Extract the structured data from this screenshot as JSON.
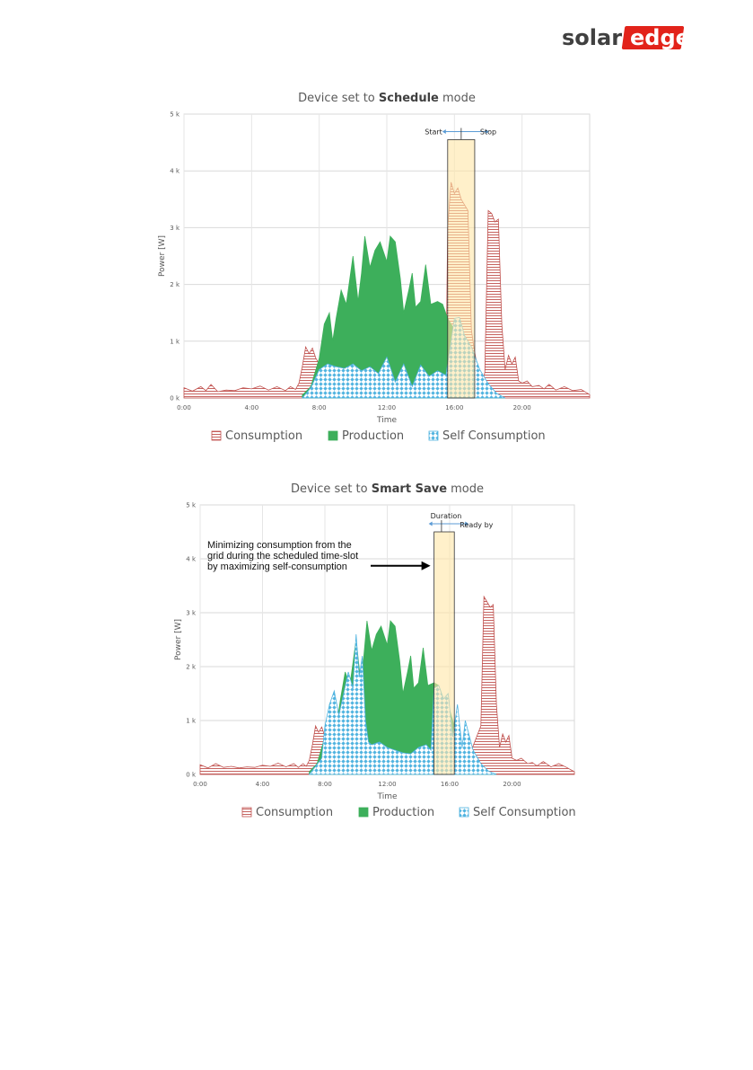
{
  "brand": {
    "logo_part1": "solar",
    "logo_part2": "edge",
    "logo_color": "#404040",
    "logo_accent": "#e2231a"
  },
  "colors": {
    "consumption": "#c0504d",
    "production": "#3daf5b",
    "self_consumption": "#4fb3e0",
    "slot_fill": "#ffe6a6",
    "arrow": "#5b9bd5"
  },
  "chart_data": [
    {
      "type": "area",
      "title_prefix": "Device  set to ",
      "title_bold": "Schedule",
      "title_suffix": " mode",
      "xlabel": "Time",
      "ylabel": "Power [W]",
      "xlim": [
        0,
        24
      ],
      "ylim": [
        0,
        5000
      ],
      "x_ticks": [
        0,
        4,
        8,
        12,
        16,
        20
      ],
      "x_tick_labels": [
        "0:00",
        "4:00",
        "8:00",
        "12:00",
        "16:00",
        "20:00"
      ],
      "y_ticks": [
        0,
        1000,
        2000,
        3000,
        4000,
        5000
      ],
      "y_tick_labels": [
        "0 k",
        "1 k",
        "2 k",
        "3 k",
        "4 k",
        "5 k"
      ],
      "grid": true,
      "legend": "bottom",
      "legend_labels": [
        "Consumption",
        "Production",
        "Self Consumption"
      ],
      "time_slot": {
        "start": 15.6,
        "stop": 17.2,
        "top": 4550
      },
      "slot_labels": [
        "Start",
        "Stop"
      ],
      "series": [
        {
          "name": "Consumption",
          "x": [
            0,
            0.5,
            1,
            1.3,
            1.6,
            2,
            2.5,
            3,
            3.5,
            4,
            4.5,
            5,
            5.5,
            6,
            6.3,
            6.6,
            6.8,
            7,
            7.2,
            7.4,
            7.6,
            7.8,
            8,
            8.3,
            8.6,
            9,
            9.5,
            10,
            10.5,
            11,
            11.5,
            12,
            12.5,
            13,
            13.5,
            14,
            14.5,
            15,
            15.5,
            15.6,
            15.8,
            16,
            16.2,
            16.4,
            16.6,
            16.8,
            17,
            17.2,
            17.4,
            17.6,
            17.8,
            18,
            18.2,
            18.4,
            18.6,
            18.8,
            19,
            19.2,
            19.4,
            19.6,
            19.8,
            20,
            20.3,
            20.6,
            21,
            21.3,
            21.6,
            22,
            22.5,
            23,
            23.5,
            24
          ],
          "y": [
            180,
            120,
            200,
            130,
            240,
            110,
            140,
            130,
            180,
            160,
            210,
            140,
            200,
            130,
            200,
            150,
            260,
            550,
            900,
            780,
            880,
            700,
            600,
            560,
            520,
            600,
            480,
            600,
            500,
            520,
            700,
            300,
            600,
            200,
            650,
            400,
            500,
            420,
            300,
            3000,
            3800,
            3600,
            3700,
            3500,
            3400,
            3300,
            1200,
            800,
            500,
            200,
            450,
            3300,
            3250,
            3100,
            3150,
            1300,
            500,
            750,
            600,
            720,
            300,
            260,
            300,
            200,
            220,
            160,
            240,
            140,
            200,
            130,
            150,
            60
          ]
        },
        {
          "name": "Production",
          "x": [
            7,
            7.5,
            8,
            8.3,
            8.6,
            8.8,
            9,
            9.3,
            9.6,
            10,
            10.3,
            10.5,
            10.7,
            11,
            11.3,
            11.6,
            12,
            12.2,
            12.5,
            12.8,
            13,
            13.3,
            13.5,
            13.7,
            14,
            14.3,
            14.6,
            15,
            15.3,
            15.6,
            16,
            16.5,
            17,
            17.5,
            18,
            18.5,
            19
          ],
          "y": [
            50,
            200,
            700,
            1300,
            1500,
            1000,
            1400,
            1900,
            1650,
            2500,
            1700,
            2200,
            2850,
            2300,
            2600,
            2750,
            2400,
            2850,
            2750,
            2100,
            1500,
            1900,
            2200,
            1600,
            1700,
            2350,
            1650,
            1700,
            1650,
            1400,
            1200,
            700,
            400,
            250,
            120,
            40,
            0
          ]
        },
        {
          "name": "Self Consumption",
          "x": [
            7,
            7.5,
            8,
            8.5,
            9,
            9.5,
            10,
            10.5,
            11,
            11.5,
            12,
            12.5,
            13,
            13.5,
            14,
            14.5,
            15,
            15.5,
            16,
            16.3,
            16.6,
            17,
            17.5,
            18,
            18.5,
            19
          ],
          "y": [
            0,
            180,
            500,
            600,
            550,
            520,
            600,
            480,
            550,
            430,
            720,
            280,
            600,
            200,
            580,
            380,
            480,
            400,
            1400,
            1420,
            1100,
            900,
            500,
            250,
            80,
            0
          ]
        }
      ]
    },
    {
      "type": "area",
      "title_prefix": "Device  set to ",
      "title_bold": "Smart Save",
      "title_suffix": " mode",
      "xlabel": "Time",
      "ylabel": "Power [W]",
      "xlim": [
        0,
        24
      ],
      "ylim": [
        0,
        5000
      ],
      "x_ticks": [
        0,
        4,
        8,
        12,
        16,
        20
      ],
      "x_tick_labels": [
        "0:00",
        "4:00",
        "8:00",
        "12:00",
        "16:00",
        "20:00"
      ],
      "y_ticks": [
        0,
        1000,
        2000,
        3000,
        4000,
        5000
      ],
      "y_tick_labels": [
        "0 k",
        "1 k",
        "2 k",
        "3 k",
        "4 k",
        "5 k"
      ],
      "grid": true,
      "legend": "bottom",
      "legend_labels": [
        "Consumption",
        "Production",
        "Self Consumption"
      ],
      "time_slot": {
        "start": 15.0,
        "stop": 16.3,
        "top": 4500
      },
      "slot_labels": [
        "Duration",
        "Ready by"
      ],
      "annotation": [
        "Minimizing consumption from the",
        "grid during the scheduled time-slot",
        "by maximizing self-consumption"
      ],
      "series": [
        {
          "name": "Consumption",
          "x": [
            0,
            0.5,
            1,
            1.5,
            2,
            2.5,
            3,
            3.5,
            4,
            4.5,
            5,
            5.5,
            6,
            6.3,
            6.6,
            6.8,
            7,
            7.2,
            7.4,
            7.6,
            7.8,
            8,
            8.5,
            9,
            9.5,
            10,
            10.5,
            11,
            11.5,
            12,
            12.5,
            13,
            13.5,
            14,
            14.5,
            15,
            15.3,
            15.6,
            15.9,
            16.2,
            16.5,
            16.8,
            17,
            17.2,
            17.4,
            17.6,
            17.8,
            18,
            18.2,
            18.4,
            18.6,
            18.8,
            19,
            19.2,
            19.4,
            19.6,
            19.8,
            20,
            20.3,
            20.6,
            21,
            21.3,
            21.6,
            22,
            22.5,
            23,
            23.5,
            24
          ],
          "y": [
            180,
            120,
            200,
            130,
            150,
            120,
            140,
            130,
            170,
            150,
            210,
            140,
            200,
            130,
            200,
            150,
            260,
            550,
            900,
            780,
            880,
            700,
            600,
            560,
            520,
            600,
            480,
            600,
            500,
            520,
            700,
            300,
            600,
            200,
            650,
            400,
            500,
            420,
            450,
            300,
            350,
            300,
            250,
            200,
            450,
            600,
            750,
            900,
            3300,
            3200,
            3100,
            3150,
            1300,
            500,
            750,
            600,
            720,
            300,
            260,
            300,
            200,
            220,
            160,
            240,
            140,
            200,
            130,
            50
          ]
        },
        {
          "name": "Production",
          "x": [
            7,
            7.5,
            8,
            8.3,
            8.6,
            8.8,
            9,
            9.3,
            9.6,
            10,
            10.3,
            10.5,
            10.7,
            11,
            11.3,
            11.6,
            12,
            12.2,
            12.5,
            12.8,
            13,
            13.3,
            13.5,
            13.7,
            14,
            14.3,
            14.6,
            15,
            15.3,
            15.6,
            16,
            16.5,
            17,
            17.5,
            18,
            18.5,
            19
          ],
          "y": [
            50,
            200,
            700,
            1300,
            1500,
            1000,
            1400,
            1900,
            1650,
            2500,
            1700,
            2200,
            2850,
            2300,
            2600,
            2750,
            2400,
            2850,
            2750,
            2100,
            1500,
            1900,
            2200,
            1600,
            1700,
            2350,
            1650,
            1700,
            1650,
            1400,
            1200,
            700,
            400,
            250,
            120,
            40,
            0
          ]
        },
        {
          "name": "Self Consumption",
          "x": [
            7,
            7.4,
            7.8,
            8,
            8.3,
            8.6,
            8.9,
            9.2,
            9.5,
            9.8,
            10,
            10.2,
            10.4,
            10.6,
            10.8,
            11,
            11.5,
            12,
            12.5,
            13,
            13.5,
            14,
            14.5,
            14.8,
            15,
            15.3,
            15.6,
            15.9,
            16.2,
            16.5,
            16.8,
            17,
            17.5,
            18,
            18.5,
            19
          ],
          "y": [
            0,
            150,
            300,
            900,
            1300,
            1550,
            1100,
            1500,
            1900,
            1600,
            2600,
            1800,
            2200,
            1000,
            600,
            550,
            600,
            500,
            450,
            400,
            380,
            500,
            550,
            450,
            1600,
            1650,
            1400,
            1500,
            700,
            1300,
            500,
            1000,
            450,
            200,
            60,
            0
          ]
        }
      ]
    }
  ]
}
